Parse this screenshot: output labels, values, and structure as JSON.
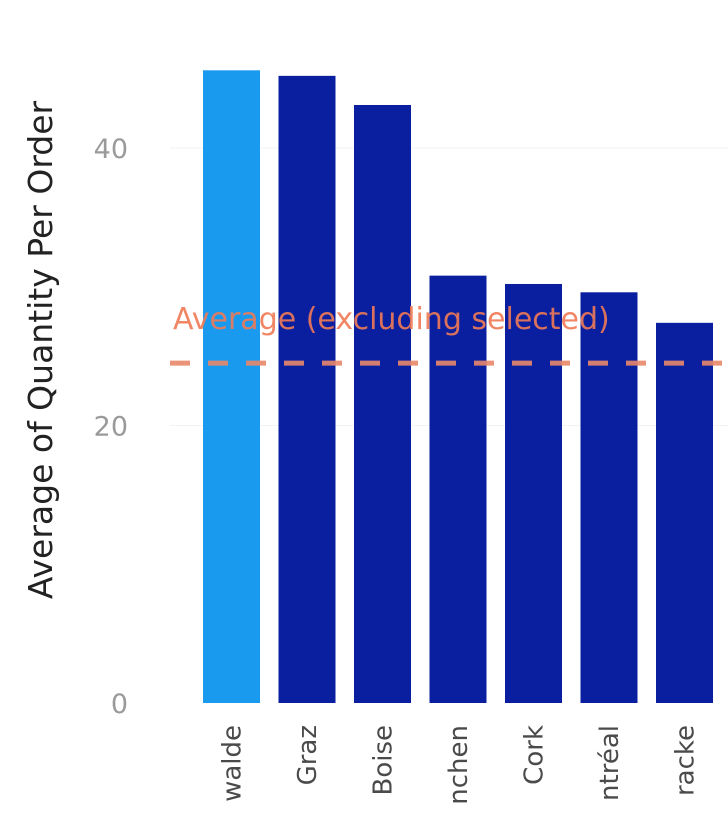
{
  "chart_data": {
    "type": "bar",
    "ylabel": "Average of Quantity Per Order",
    "xlabel": "",
    "categories": [
      "walde",
      "Graz",
      "Boise",
      "nchen",
      "Cork",
      "ntréal",
      "racke"
    ],
    "values": [
      45.6,
      45.2,
      43.1,
      30.8,
      30.2,
      29.6,
      27.4
    ],
    "highlighted_index": 0,
    "ylim": [
      0,
      48
    ],
    "yticks": [
      0,
      20,
      40
    ],
    "grid": false,
    "reference_line": {
      "label": "Average (excluding selected)",
      "value": 24.5
    },
    "colors": {
      "bar": "#0a1fa0",
      "bar_highlight": "#1a9aef",
      "reference_line": "#e8886a",
      "reference_label": "#f07a55"
    }
  }
}
